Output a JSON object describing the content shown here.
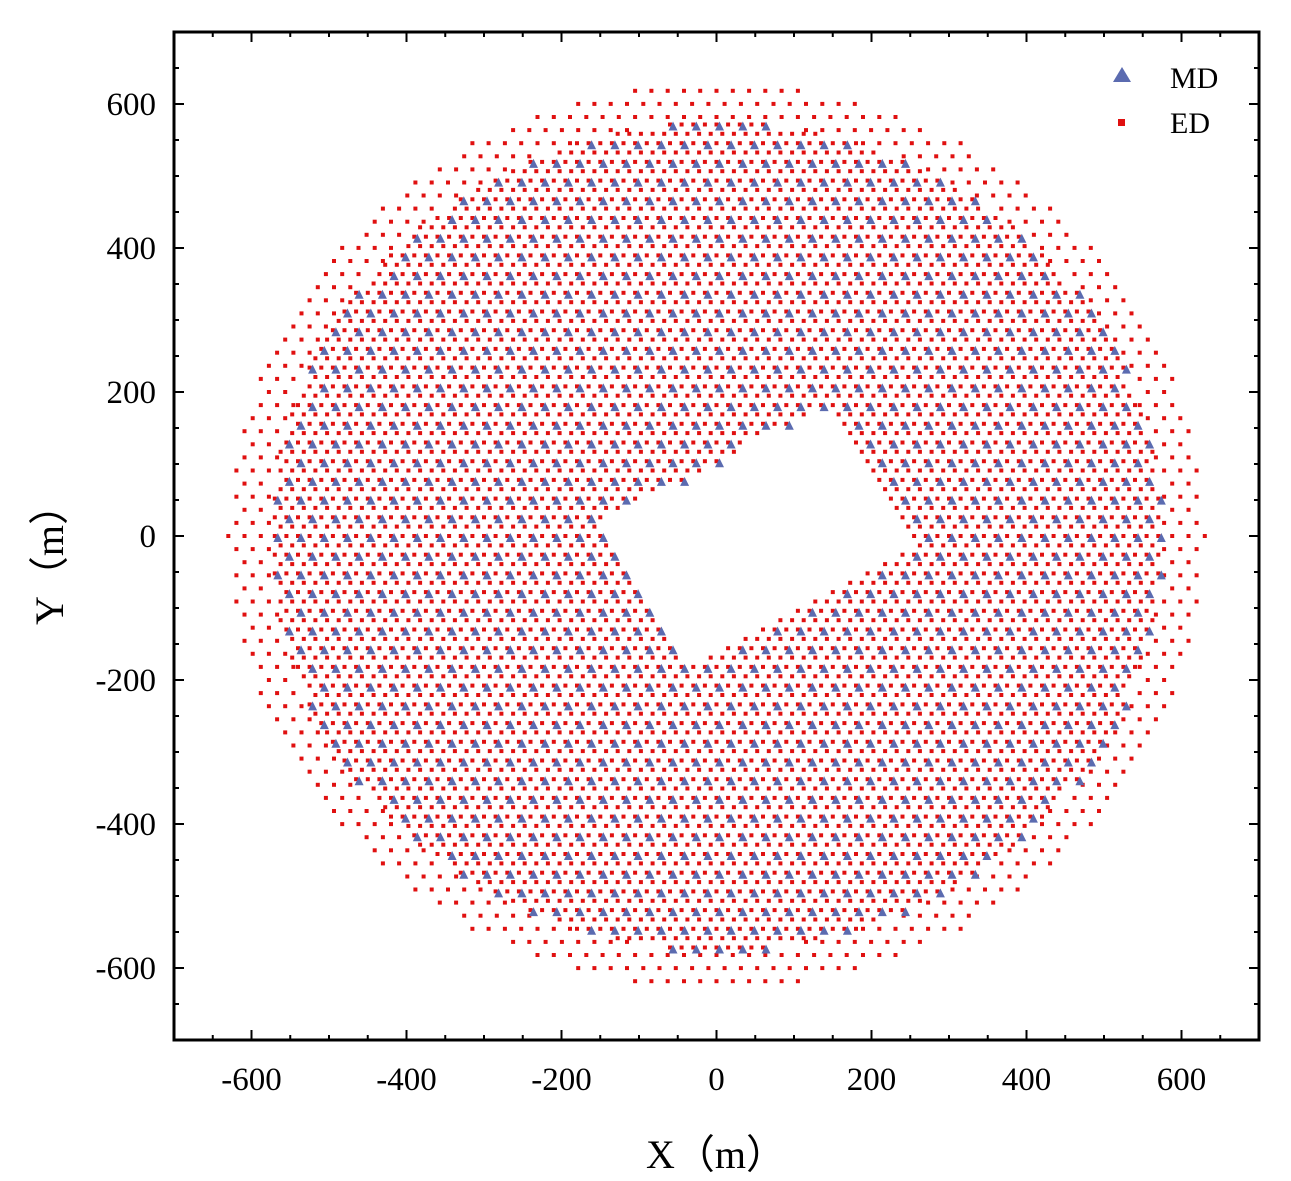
{
  "chart_data": {
    "type": "scatter",
    "title": "",
    "xlabel": "X（m）",
    "ylabel": "Y（m）",
    "xlim": [
      -700,
      700
    ],
    "ylim": [
      -700,
      700
    ],
    "xticks": [
      -600,
      -400,
      -200,
      0,
      200,
      400,
      600
    ],
    "yticks": [
      -600,
      -400,
      -200,
      0,
      200,
      400,
      600
    ],
    "grid": false,
    "legend_position": "top-right",
    "series": [
      {
        "name": "MD",
        "marker": "triangle",
        "color": "#5b6bb0",
        "layout": {
          "kind": "hex-grid",
          "spacing_m": 30,
          "boundary_radius_m": 575,
          "exclusion_rect": {
            "center": [
              50,
              0
            ],
            "width_m": 330,
            "height_m": 230,
            "rotation_deg": 30
          }
        }
      },
      {
        "name": "ED",
        "marker": "square",
        "color": "#e01010",
        "layout": {
          "kind": "hex-grid",
          "spacing_m": 15,
          "boundary_radius_m": 575,
          "outer_ring_radius_m": 630,
          "outer_ring_spacing_m": 21,
          "exclusion_rect": {
            "center": [
              50,
              0
            ],
            "width_m": 330,
            "height_m": 230,
            "rotation_deg": 30
          }
        }
      }
    ]
  }
}
